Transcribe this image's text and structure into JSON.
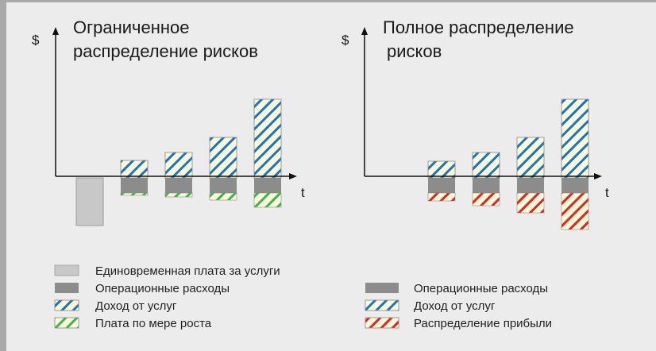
{
  "colors": {
    "background": "#ececec",
    "one_time_fee": "#c8c8c8",
    "operating_cost": "#8c8c8c",
    "hatch_bg": "#fbf9dc",
    "service_revenue": "#1b75bc",
    "growth_fee": "#3ab54a",
    "profit_share": "#e2231a"
  },
  "panels": [
    {
      "title_line1": "Ограниченное",
      "title_line2": "распределение рисков",
      "y_label": "$",
      "x_label": "t"
    },
    {
      "title_line1": "Полное распределение",
      "title_line2": "рисков",
      "y_label": "$",
      "x_label": "t"
    }
  ],
  "legend_left": [
    {
      "label": "Единовременная плата за услуги",
      "swatch": "one_time_fee"
    },
    {
      "label": "Операционные расходы",
      "swatch": "operating_cost"
    },
    {
      "label": "Доход от услуг",
      "swatch": "service_revenue"
    },
    {
      "label": "Плата по мере роста",
      "swatch": "growth_fee"
    }
  ],
  "legend_right": [
    {
      "label": "Операционные расходы",
      "swatch": "operating_cost"
    },
    {
      "label": "Доход от услуг",
      "swatch": "service_revenue"
    },
    {
      "label": "Распределение прибыли",
      "swatch": "profit_share"
    }
  ]
}
